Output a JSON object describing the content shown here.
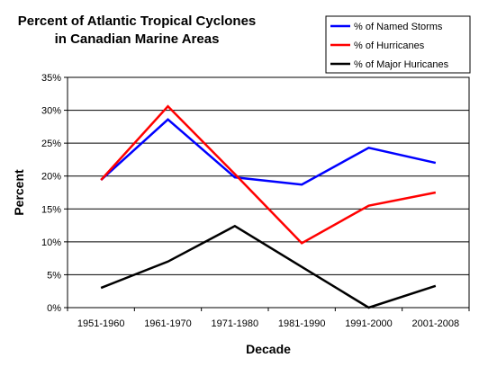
{
  "chart_data": {
    "type": "line",
    "title_lines": [
      "Percent of Atlantic Tropical Cyclones",
      "in Canadian Marine Areas"
    ],
    "xlabel": "Decade",
    "ylabel": "Percent",
    "categories": [
      "1951-1960",
      "1961-1970",
      "1971-1980",
      "1981-1990",
      "1991-2000",
      "2001-2008"
    ],
    "ylim": [
      0,
      35
    ],
    "ytick_step": 5,
    "ytick_labels": [
      "0%",
      "5%",
      "10%",
      "15%",
      "20%",
      "25%",
      "30%",
      "35%"
    ],
    "grid": true,
    "legend_position": "top-right",
    "series": [
      {
        "name": "% of Named Storms",
        "color": "#0000ff",
        "values": [
          19.4,
          28.6,
          19.8,
          18.7,
          24.3,
          22.0
        ]
      },
      {
        "name": "% of Hurricanes",
        "color": "#ff0000",
        "values": [
          19.4,
          30.6,
          20.3,
          9.8,
          15.5,
          17.5
        ]
      },
      {
        "name": "% of Major Huricanes",
        "color": "#000000",
        "values": [
          3.0,
          7.0,
          12.4,
          6.2,
          0.0,
          3.3
        ]
      }
    ]
  }
}
